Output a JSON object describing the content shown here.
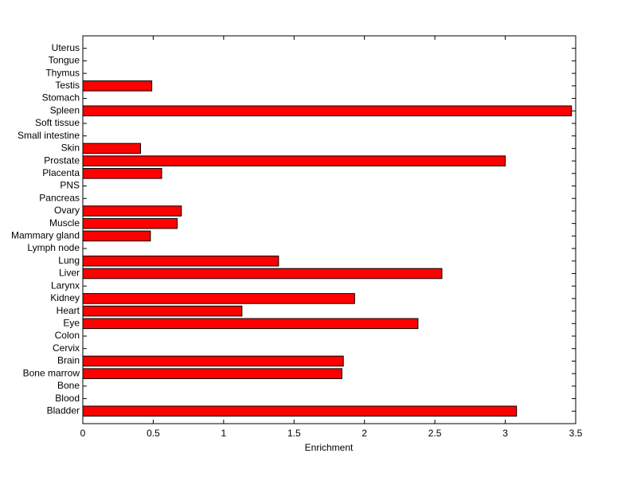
{
  "chart_data": {
    "type": "barh",
    "xlabel": "Enrichment",
    "categories": [
      "Bladder",
      "Blood",
      "Bone",
      "Bone marrow",
      "Brain",
      "Cervix",
      "Colon",
      "Eye",
      "Heart",
      "Kidney",
      "Larynx",
      "Liver",
      "Lung",
      "Lymph node",
      "Mammary gland",
      "Muscle",
      "Ovary",
      "Pancreas",
      "PNS",
      "Placenta",
      "Prostate",
      "Skin",
      "Small intestine",
      "Soft tissue",
      "Spleen",
      "Stomach",
      "Testis",
      "Thymus",
      "Tongue",
      "Uterus"
    ],
    "values": [
      3.08,
      0,
      0,
      1.84,
      1.85,
      0,
      0,
      2.38,
      1.13,
      1.93,
      0,
      2.55,
      1.39,
      0,
      0.48,
      0.67,
      0.7,
      0,
      0,
      0.56,
      3.0,
      0.41,
      0,
      0,
      3.47,
      0,
      0.49,
      0,
      0,
      0
    ],
    "color": "#ff0000",
    "xlim": [
      0,
      3.5
    ],
    "xticks": [
      0,
      0.5,
      1,
      1.5,
      2,
      2.5,
      3,
      3.5
    ]
  }
}
